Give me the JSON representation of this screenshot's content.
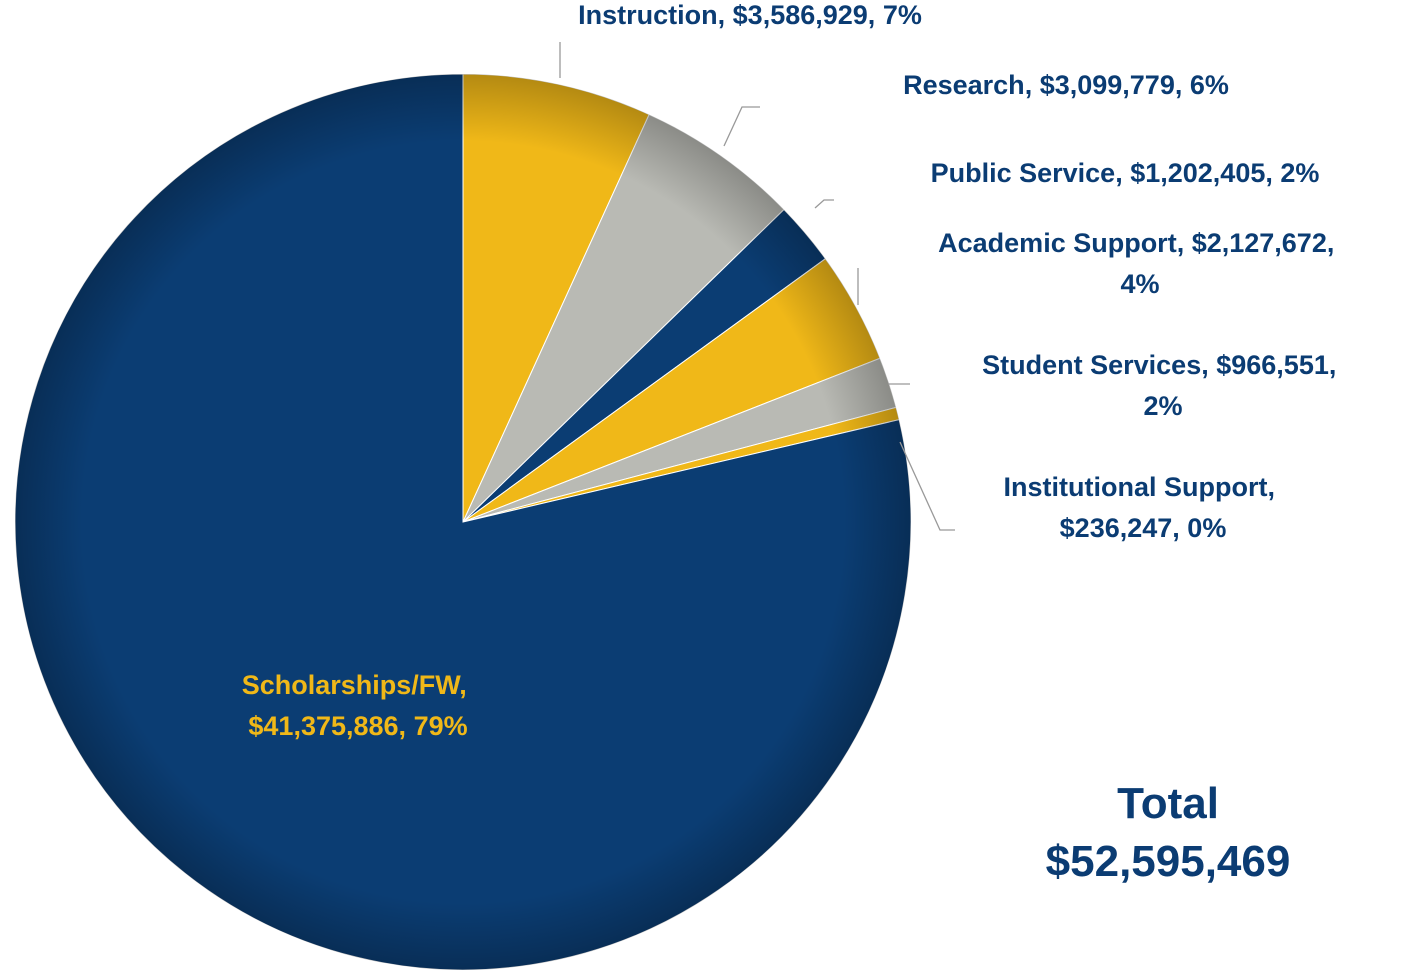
{
  "chart_data": {
    "type": "pie",
    "categories": [
      "Instruction",
      "Research",
      "Public Service",
      "Academic Support",
      "Student Services",
      "Institutional Support",
      "Scholarships/FW"
    ],
    "values": [
      3586929,
      3099779,
      1202405,
      2127672,
      966551,
      236247,
      41375886
    ],
    "value_labels": [
      "$3,586,929",
      "$3,099,779",
      "$1,202,405",
      "$2,127,672",
      "$966,551",
      "$236,247",
      "$41,375,886"
    ],
    "percents": [
      7,
      6,
      2,
      4,
      2,
      0,
      79
    ],
    "percent_labels": [
      "7%",
      "6%",
      "2%",
      "4%",
      "2%",
      "0%",
      "79%"
    ],
    "label_separator": ", ",
    "colors": [
      "#f0b818",
      "#b9bab4",
      "#0b3d73",
      "#f0b818",
      "#b9bab4",
      "#f0b818",
      "#0b3d73"
    ],
    "total_label": "Total",
    "total": 52595469,
    "total_value_label": "$52,595,469"
  }
}
